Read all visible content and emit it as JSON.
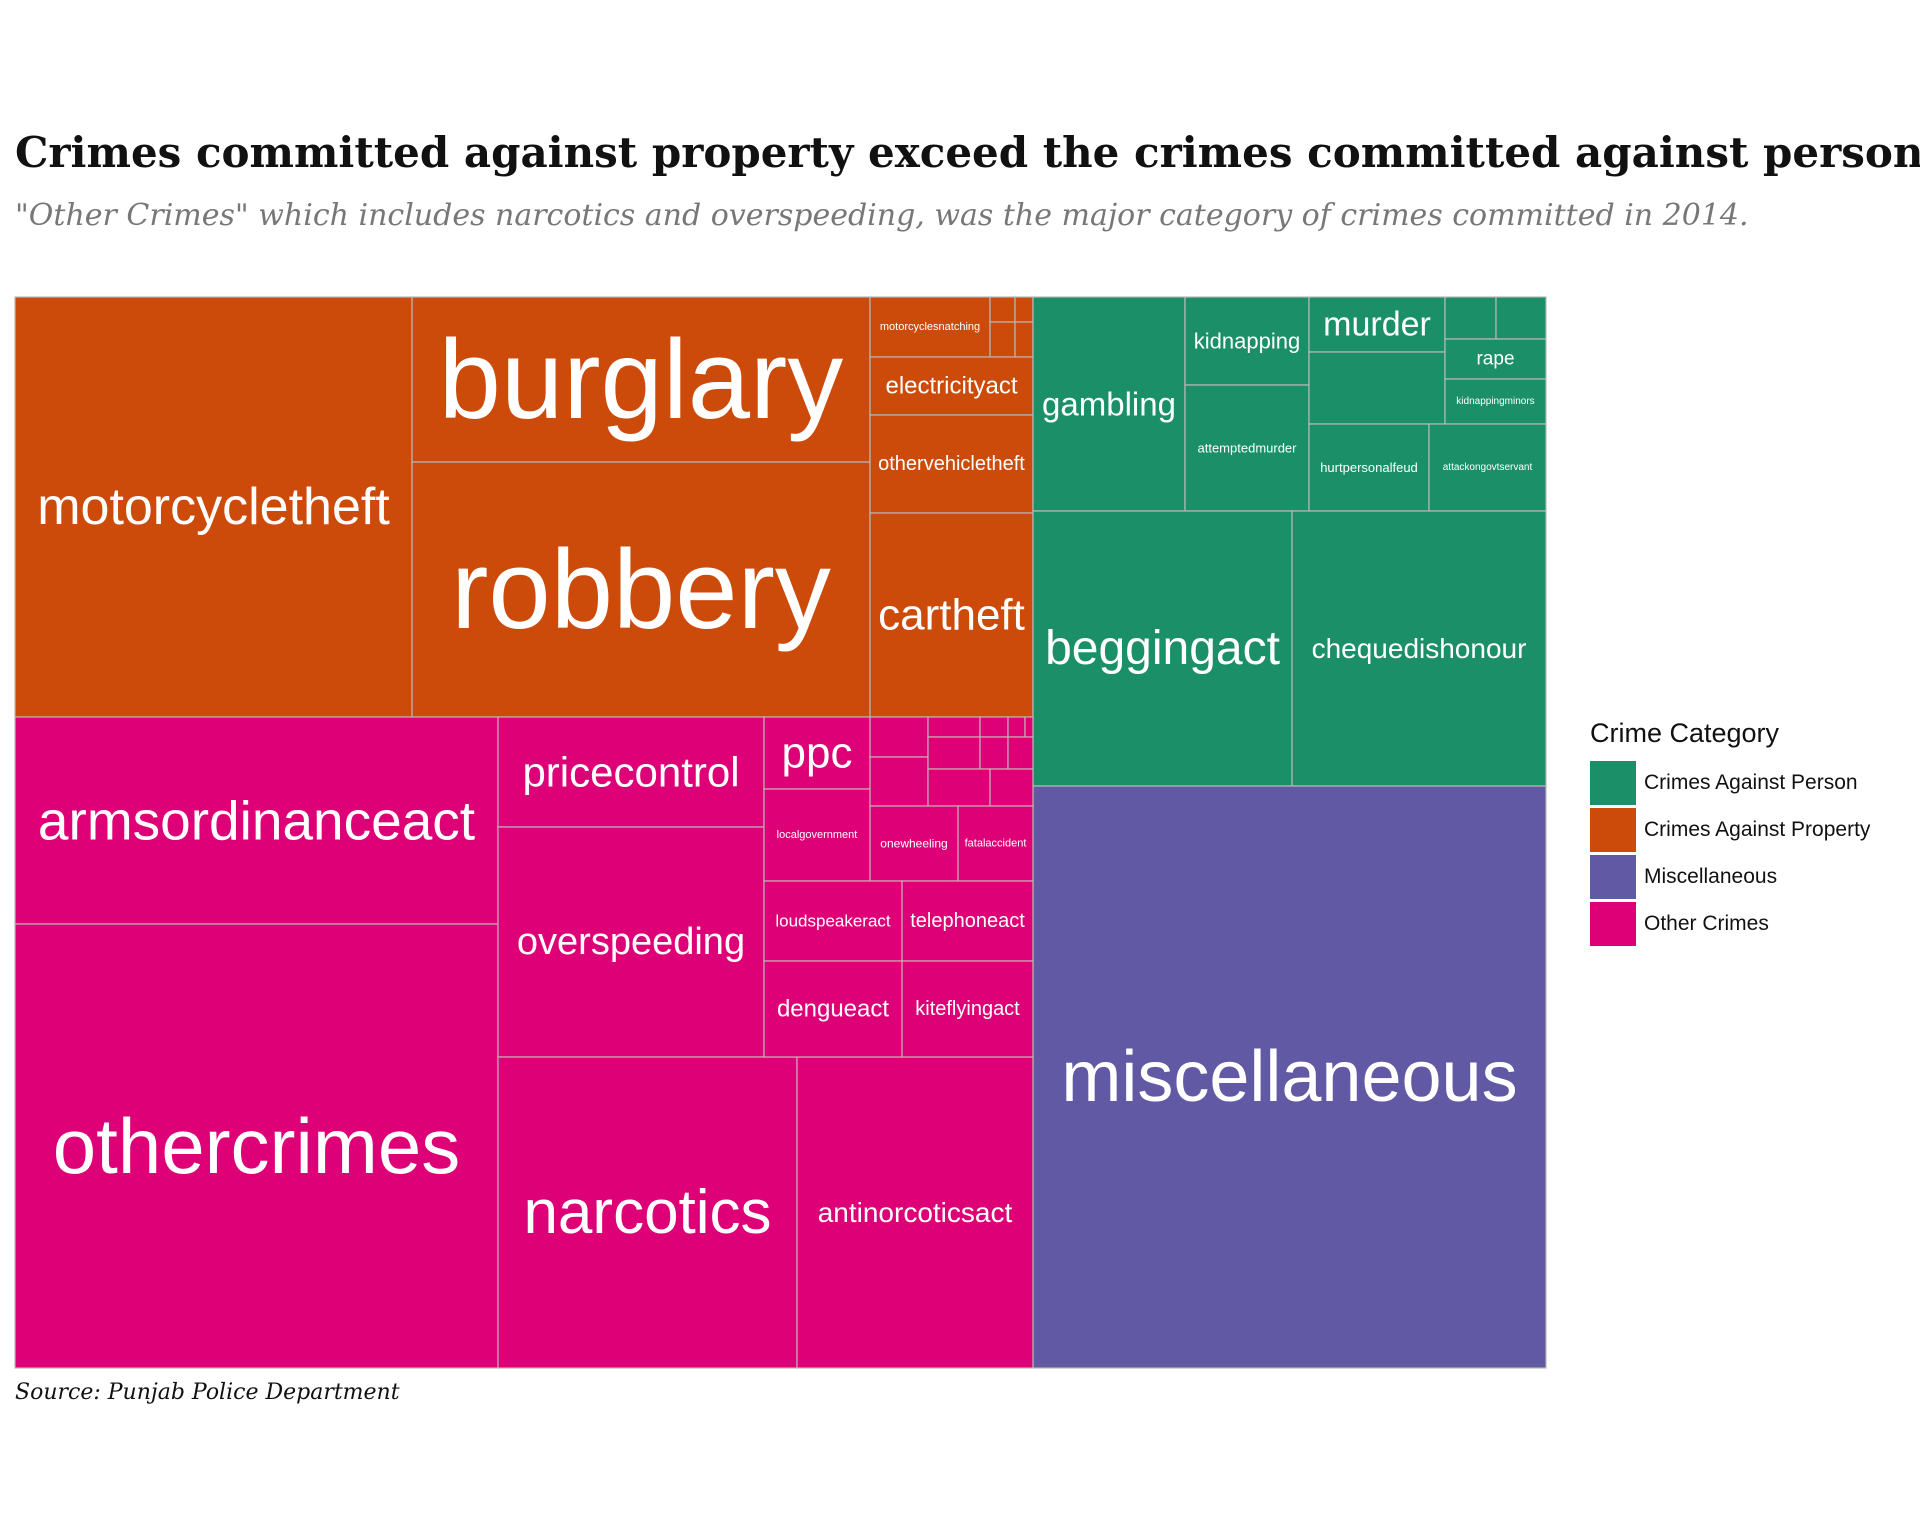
{
  "title": "Crimes committed against property exceed the crimes committed against person",
  "subtitle": "\"Other Crimes\" which includes narcotics and overspeeding, was the major category of crimes committed in 2014.",
  "caption": "Source: Punjab Police Department",
  "legend": {
    "title": "Crime Category",
    "items": [
      {
        "label": "Crimes Against Person",
        "color": "#1b9068"
      },
      {
        "label": "Crimes Against Property",
        "color": "#cc4a0a"
      },
      {
        "label": "Miscellaneous",
        "color": "#6159a3"
      },
      {
        "label": "Other Crimes",
        "color": "#dd0076"
      }
    ]
  },
  "chart_data": {
    "type": "treemap",
    "series_labels": [
      "Crimes Against Person",
      "Crimes Against Property",
      "Miscellaneous",
      "Other Crimes"
    ],
    "categories": [
      {
        "name": "Crimes Against Property",
        "color": "#cc4a0a",
        "items": [
          "motorcycletheft",
          "burglary",
          "robbery",
          "motorcyclesnatching",
          "electricityact",
          "othervehicletheft",
          "cartheft"
        ]
      },
      {
        "name": "Crimes Against Person",
        "color": "#1b9068",
        "items": [
          "gambling",
          "kidnapping",
          "murder",
          "attemptedmurder",
          "rape",
          "kidnappingminors",
          "hurtpersonalfeud",
          "attackongovtservant",
          "beggingact",
          "chequedishonour"
        ]
      },
      {
        "name": "Miscellaneous",
        "color": "#6159a3",
        "items": [
          "miscellaneous"
        ]
      },
      {
        "name": "Other Crimes",
        "color": "#dd0076",
        "items": [
          "armsordinanceact",
          "othercrimes",
          "pricecontrol",
          "overspeeding",
          "narcotics",
          "antinorcoticsact",
          "ppc",
          "localgovernment",
          "onewheeling",
          "fatalaccident",
          "loudspeakeract",
          "telephoneact",
          "dengueact",
          "kiteflyingact"
        ]
      }
    ],
    "labels": [
      "motorcycletheft",
      "burglary",
      "robbery",
      "motorcyclesnatching",
      "electricityact",
      "othervehicletheft",
      "cartheft",
      "gambling",
      "kidnapping",
      "murder",
      "attemptedmurder",
      "rape",
      "kidnappingminors",
      "hurtpersonalfeud",
      "attackongovtservant",
      "beggingact",
      "chequedishonour",
      "miscellaneous",
      "armsordinanceact",
      "othercrimes",
      "pricecontrol",
      "overspeeding",
      "narcotics",
      "antinorcoticsact",
      "ppc",
      "localgovernment",
      "onewheeling",
      "fatalaccident",
      "loudspeakeract",
      "telephoneact",
      "dengueact",
      "kiteflyingact"
    ],
    "legend_position": "right"
  }
}
